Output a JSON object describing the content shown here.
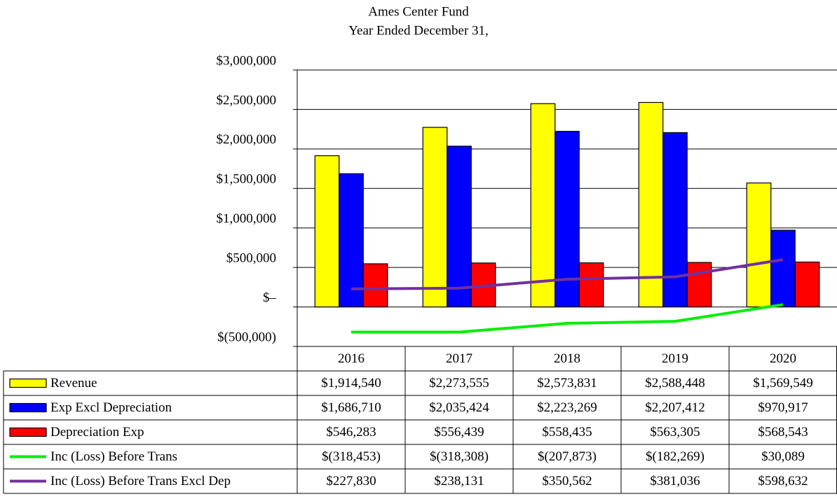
{
  "chart_data": {
    "type": "bar",
    "title": "Ames Center Fund",
    "subtitle": "Year Ended December 31,",
    "categories": [
      "2016",
      "2017",
      "2018",
      "2019",
      "2020"
    ],
    "series": [
      {
        "name": "Revenue",
        "type": "bar",
        "color": "#ffff00",
        "values": [
          1914540,
          2273555,
          2573831,
          2588448,
          1569549
        ],
        "value_labels": [
          "$1,914,540",
          "$2,273,555",
          "$2,573,831",
          "$2,588,448",
          "$1,569,549"
        ]
      },
      {
        "name": "Exp Excl Depreciation",
        "type": "bar",
        "color": "#0000ff",
        "values": [
          1686710,
          2035424,
          2223269,
          2207412,
          970917
        ],
        "value_labels": [
          "$1,686,710",
          "$2,035,424",
          "$2,223,269",
          "$2,207,412",
          "$970,917"
        ]
      },
      {
        "name": "Depreciation Exp",
        "type": "bar",
        "color": "#ff0000",
        "values": [
          546283,
          556439,
          558435,
          563305,
          568543
        ],
        "value_labels": [
          "$546,283",
          "$556,439",
          "$558,435",
          "$563,305",
          "$568,543"
        ]
      },
      {
        "name": "Inc (Loss) Before Trans",
        "type": "line",
        "color": "#00ee00",
        "values": [
          -318453,
          -318308,
          -207873,
          -182269,
          30089
        ],
        "value_labels": [
          "$(318,453)",
          "$(318,308)",
          "$(207,873)",
          "$(182,269)",
          "$30,089"
        ]
      },
      {
        "name": "Inc (Loss) Before Trans Excl Dep",
        "type": "line",
        "color": "#7030a0",
        "values": [
          227830,
          238131,
          350562,
          381036,
          598632
        ],
        "value_labels": [
          "$227,830",
          "$238,131",
          "$350,562",
          "$381,036",
          "$598,632"
        ]
      }
    ],
    "ylim": [
      -500000,
      3000000
    ],
    "yticks": [
      {
        "value": -500000,
        "label": "$(500,000)"
      },
      {
        "value": 0,
        "label": "$–"
      },
      {
        "value": 500000,
        "label": "$500,000"
      },
      {
        "value": 1000000,
        "label": "$1,000,000"
      },
      {
        "value": 1500000,
        "label": "$1,500,000"
      },
      {
        "value": 2000000,
        "label": "$2,000,000"
      },
      {
        "value": 2500000,
        "label": "$2,500,000"
      },
      {
        "value": 3000000,
        "label": "$3,000,000"
      }
    ],
    "grid": true
  }
}
